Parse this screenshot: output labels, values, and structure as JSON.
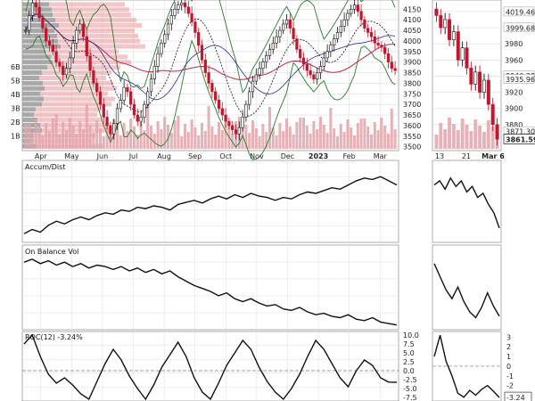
{
  "chart_data": [
    {
      "panel": "price",
      "type": "candlestick",
      "title": "",
      "xlabel": "",
      "ylabel": "",
      "x_ticks": [
        "Apr",
        "May",
        "Jun",
        "Jul",
        "Aug",
        "Sep",
        "Oct",
        "Nov",
        "Dec",
        "2023",
        "Feb",
        "Mar"
      ],
      "y_ticks": [
        3500,
        3550,
        3600,
        3650,
        3700,
        3750,
        3800,
        3850,
        3900,
        3950,
        4000,
        4050,
        4100,
        4150
      ],
      "ylim": [
        3490,
        4185
      ],
      "volume_by_price_labels": [
        "6B",
        "5B",
        "4B",
        "3B",
        "2B",
        "1B"
      ],
      "close": [
        4050,
        4120,
        4180,
        4160,
        4110,
        4060,
        4000,
        3980,
        3950,
        3900,
        3880,
        3840,
        3870,
        3920,
        3990,
        4050,
        4080,
        4020,
        3930,
        3860,
        3800,
        3760,
        3700,
        3640,
        3600,
        3560,
        3610,
        3680,
        3720,
        3780,
        3760,
        3700,
        3650,
        3620,
        3640,
        3700,
        3760,
        3820,
        3880,
        3940,
        3990,
        4030,
        4080,
        4120,
        4150,
        4170,
        4180,
        4160,
        4130,
        4090,
        4040,
        3980,
        3910,
        3850,
        3800,
        3760,
        3720,
        3680,
        3650,
        3620,
        3600,
        3580,
        3560,
        3590,
        3640,
        3700,
        3760,
        3810,
        3840,
        3870,
        3900,
        3930,
        3960,
        3990,
        4020,
        4050,
        4080,
        4100,
        4060,
        4010,
        3960,
        3920,
        3890,
        3860,
        3840,
        3820,
        3850,
        3880,
        3920,
        3950,
        3980,
        4010,
        4040,
        4070,
        4100,
        4130,
        4150,
        4170,
        4140,
        4100,
        4060,
        4040,
        4020,
        3990,
        3980,
        3970,
        3940,
        3900,
        3870,
        3860
      ],
      "series": [
        {
          "name": "",
          "role": "moving-average-50",
          "color": "#111111"
        },
        {
          "name": "",
          "role": "moving-average-200",
          "color": "#c0244a"
        },
        {
          "name": "",
          "role": "bollinger-bands",
          "color": "#2b7a2b"
        }
      ]
    },
    {
      "panel": "accum-dist",
      "type": "line",
      "title": "Accum/Dist",
      "values": [
        0.1,
        0.16,
        0.12,
        0.22,
        0.28,
        0.24,
        0.3,
        0.34,
        0.3,
        0.36,
        0.4,
        0.38,
        0.44,
        0.42,
        0.48,
        0.46,
        0.5,
        0.48,
        0.44,
        0.52,
        0.55,
        0.58,
        0.54,
        0.6,
        0.64,
        0.6,
        0.66,
        0.62,
        0.68,
        0.64,
        0.62,
        0.58,
        0.62,
        0.6,
        0.66,
        0.7,
        0.68,
        0.72,
        0.76,
        0.74,
        0.8,
        0.86,
        0.9,
        0.88,
        0.92,
        0.86,
        0.8
      ],
      "ylim": [
        0,
        1
      ]
    },
    {
      "panel": "on-balance-vol",
      "type": "line",
      "title": "On Balance Vol",
      "values": [
        0.9,
        0.94,
        0.88,
        0.92,
        0.86,
        0.9,
        0.84,
        0.88,
        0.82,
        0.86,
        0.84,
        0.8,
        0.84,
        0.78,
        0.82,
        0.76,
        0.8,
        0.74,
        0.78,
        0.7,
        0.64,
        0.58,
        0.54,
        0.5,
        0.44,
        0.48,
        0.4,
        0.36,
        0.4,
        0.34,
        0.3,
        0.32,
        0.26,
        0.24,
        0.28,
        0.22,
        0.18,
        0.2,
        0.16,
        0.14,
        0.18,
        0.12,
        0.1,
        0.14,
        0.08,
        0.06,
        0.04
      ],
      "ylim": [
        0,
        1
      ]
    },
    {
      "panel": "roc",
      "type": "line",
      "title": "ROC(12) -3.24%",
      "y_ticks": [
        10.0,
        7.5,
        5.0,
        2.5,
        0.0,
        -2.5,
        -5.0,
        -7.5
      ],
      "ylim": [
        -8.5,
        10.5
      ],
      "values": [
        7.5,
        10.0,
        4.0,
        -1.0,
        -3.5,
        -2.0,
        -4.0,
        -6.5,
        -8.0,
        -3.0,
        2.0,
        6.0,
        3.0,
        -1.5,
        -5.0,
        -8.0,
        -4.0,
        1.0,
        4.5,
        8.0,
        4.0,
        -2.0,
        -6.0,
        -8.0,
        -3.5,
        1.5,
        5.0,
        8.5,
        6.0,
        1.0,
        -3.0,
        -6.0,
        -8.0,
        -5.0,
        -1.0,
        4.0,
        8.5,
        6.0,
        2.0,
        -2.0,
        -4.5,
        0.0,
        3.0,
        1.5,
        -2.0,
        -3.2,
        -3.24
      ]
    },
    {
      "panel": "price-detail",
      "type": "candlestick",
      "x_ticks": [
        "13",
        "21",
        "Mar 6"
      ],
      "y_ticks": [
        3880,
        3900,
        3920,
        3940,
        3960,
        3980,
        4000,
        4020
      ],
      "price_labels": [
        "4019.46",
        "3999.68",
        "3940.38",
        "3935.96",
        "3871.30",
        "3861.59"
      ],
      "ylim": [
        3850,
        4032
      ],
      "close": [
        4015,
        4000,
        4010,
        3985,
        3995,
        3960,
        3975,
        3950,
        3930,
        3945,
        3920,
        3935,
        3905,
        3880,
        3862
      ]
    },
    {
      "panel": "accum-dist-detail",
      "type": "line",
      "values": [
        0.8,
        0.86,
        0.74,
        0.9,
        0.78,
        0.86,
        0.7,
        0.78,
        0.62,
        0.68,
        0.52,
        0.4,
        0.18
      ],
      "ylim": [
        0,
        1
      ]
    },
    {
      "panel": "obv-detail",
      "type": "line",
      "values": [
        0.88,
        0.7,
        0.52,
        0.4,
        0.56,
        0.36,
        0.22,
        0.14,
        0.28,
        0.48,
        0.3,
        0.16
      ],
      "ylim": [
        0,
        1
      ]
    },
    {
      "panel": "roc-detail",
      "type": "line",
      "y_ticks": [
        3,
        2,
        1,
        0,
        -1,
        -2,
        -3
      ],
      "value_label": "-3.24",
      "ylim": [
        -3.6,
        3.4
      ],
      "values": [
        1.0,
        3.2,
        0.5,
        -1.0,
        -2.8,
        -3.2,
        -2.5,
        -3.0,
        -2.4,
        -2.0,
        -2.6,
        -3.24
      ]
    }
  ],
  "colors": {
    "up": "#111111",
    "down": "#c0172e",
    "volume": "#e2a4aa",
    "vbp_gray": "#9a9a9a",
    "vbp_red": "#e7999f",
    "ma50": "#111111",
    "ma200": "#c0244a",
    "bands": "#2b7a2b",
    "grid": "#dcdcdc"
  }
}
